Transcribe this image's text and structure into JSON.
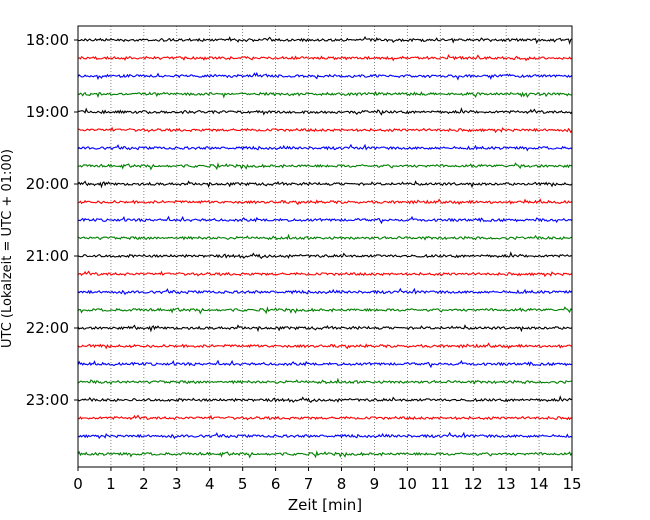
{
  "chart_data": {
    "type": "line",
    "xlabel": "Zeit  [min]",
    "ylabel": "UTC (Lokalzeit = UTC + 01:00)",
    "xlim": [
      0,
      15
    ],
    "x_ticks": [
      "0",
      "1",
      "2",
      "3",
      "4",
      "5",
      "6",
      "7",
      "8",
      "9",
      "10",
      "11",
      "12",
      "13",
      "14",
      "15"
    ],
    "y_ticks": [
      {
        "label": "18:00",
        "trace": 0
      },
      {
        "label": "19:00",
        "trace": 4
      },
      {
        "label": "20:00",
        "trace": 8
      },
      {
        "label": "21:00",
        "trace": 12
      },
      {
        "label": "22:00",
        "trace": 16
      },
      {
        "label": "23:00",
        "trace": 20
      }
    ],
    "trace_minutes": 15,
    "trace_count": 24,
    "trace_start_hour": "18:00",
    "colors": [
      "#000000",
      "#ff0000",
      "#0000ff",
      "#008000"
    ],
    "grid_x": true,
    "grid_style": "dotted"
  }
}
